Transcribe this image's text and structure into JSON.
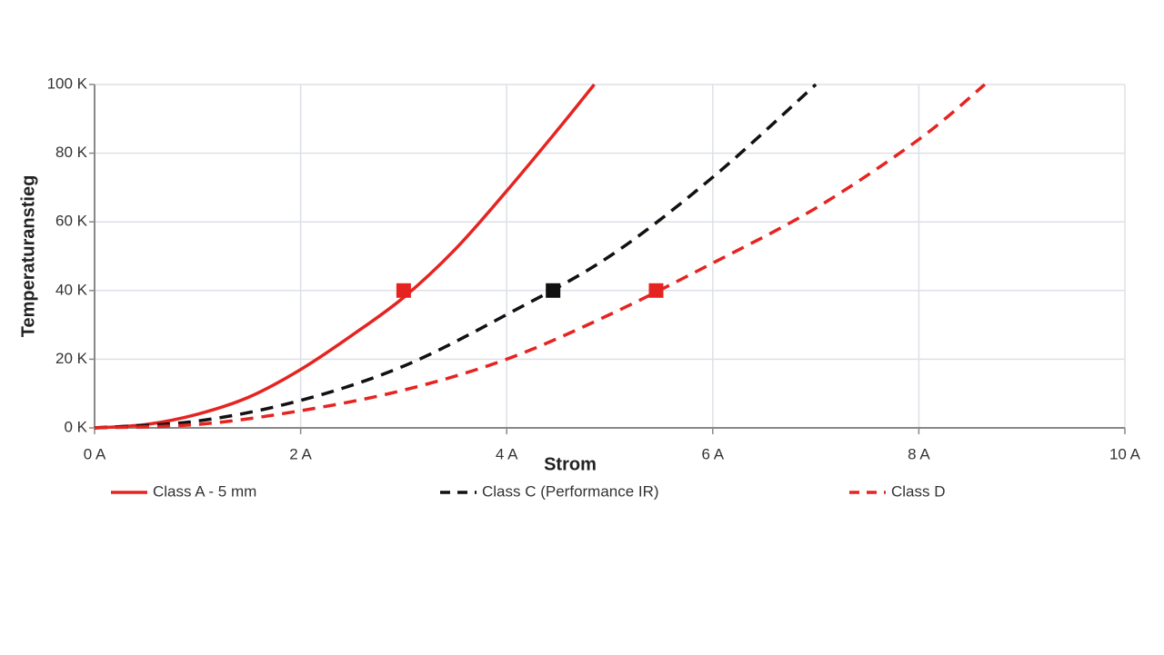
{
  "chart_data": {
    "type": "line",
    "x_label": "Strom",
    "y_label": "Temperaturanstieg",
    "xlim": [
      0,
      10
    ],
    "ylim": [
      0,
      100
    ],
    "xticks": [
      {
        "value": 0,
        "label": "0 A"
      },
      {
        "value": 2,
        "label": "2 A"
      },
      {
        "value": 4,
        "label": "4 A"
      },
      {
        "value": 6,
        "label": "6 A"
      },
      {
        "value": 8,
        "label": "8 A"
      },
      {
        "value": 10,
        "label": "10 A"
      }
    ],
    "yticks": [
      {
        "value": 0,
        "label": "0 K"
      },
      {
        "value": 20,
        "label": "20 K"
      },
      {
        "value": 40,
        "label": "40 K"
      },
      {
        "value": 60,
        "label": "60 K"
      },
      {
        "value": 80,
        "label": "80 K"
      },
      {
        "value": 100,
        "label": "100 K"
      }
    ],
    "grid": true,
    "legend": "bottom",
    "series": [
      {
        "name": "Class A - 5 mm",
        "color": "#e52421",
        "style": "solid",
        "x": [
          0,
          0.5,
          1,
          1.5,
          2,
          2.5,
          3,
          3.5,
          4,
          4.5,
          4.85
        ],
        "values": [
          0,
          1,
          4,
          9,
          17,
          27,
          38,
          52,
          69,
          87,
          100
        ],
        "marker": {
          "x": 3,
          "y": 40
        }
      },
      {
        "name": "Class C (Performance IR)",
        "color": "#111111",
        "style": "dashed",
        "x": [
          0,
          1,
          2,
          3,
          4,
          5,
          6,
          7
        ],
        "values": [
          0,
          2,
          8,
          18,
          33,
          50,
          73,
          100
        ],
        "marker": {
          "x": 4.45,
          "y": 40
        }
      },
      {
        "name": "Class D",
        "color": "#e52421",
        "style": "dashed",
        "x": [
          0,
          1,
          2,
          3,
          4,
          5,
          6,
          7,
          8,
          8.64
        ],
        "values": [
          0,
          1,
          5,
          11,
          20,
          33,
          48,
          64,
          84,
          100
        ],
        "marker": {
          "x": 5.45,
          "y": 40
        }
      }
    ]
  }
}
